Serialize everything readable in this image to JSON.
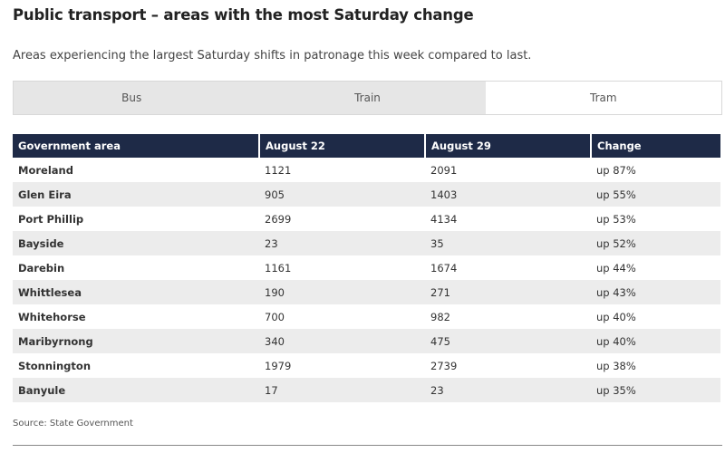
{
  "title": "Public transport – areas with the most Saturday change",
  "subtitle": "Areas experiencing the largest Saturday shifts in patronage this week compared to last.",
  "tabs": [
    {
      "label": "Bus",
      "active": false
    },
    {
      "label": "Train",
      "active": false
    },
    {
      "label": "Tram",
      "active": true
    }
  ],
  "table": {
    "headers": [
      "Government area",
      "August 22",
      "August 29",
      "Change"
    ],
    "rows": [
      [
        "Moreland",
        "1121",
        "2091",
        "up 87%"
      ],
      [
        "Glen Eira",
        "905",
        "1403",
        "up 55%"
      ],
      [
        "Port Phillip",
        "2699",
        "4134",
        "up 53%"
      ],
      [
        "Bayside",
        "23",
        "35",
        "up 52%"
      ],
      [
        "Darebin",
        "1161",
        "1674",
        "up 44%"
      ],
      [
        "Whittlesea",
        "190",
        "271",
        "up 43%"
      ],
      [
        "Whitehorse",
        "700",
        "982",
        "up 40%"
      ],
      [
        "Maribyrnong",
        "340",
        "475",
        "up 40%"
      ],
      [
        "Stonnington",
        "1979",
        "2739",
        "up 38%"
      ],
      [
        "Banyule",
        "17",
        "23",
        "up 35%"
      ]
    ]
  },
  "source": "Source: State Government"
}
